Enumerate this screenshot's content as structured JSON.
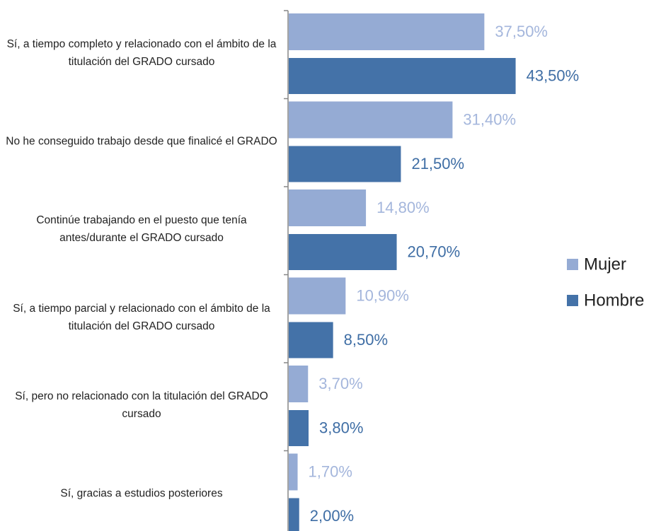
{
  "chart_data": {
    "type": "barh",
    "categories": [
      "Sí, a tiempo completo y relacionado con el ámbito de la titulación del GRADO cursado",
      "No he conseguido trabajo desde que finalicé el GRADO",
      "Continúe trabajando en el puesto que tenía antes/durante el GRADO cursado",
      "Sí, a tiempo parcial y relacionado con el ámbito de la titulación del GRADO cursado",
      "Sí, pero no relacionado con la titulación del GRADO cursado",
      "Sí, gracias a estudios posteriores"
    ],
    "series": [
      {
        "name": "Mujer",
        "color": "#95abd4",
        "values": [
          37.5,
          31.4,
          14.8,
          10.9,
          3.7,
          1.7
        ],
        "value_labels": [
          "37,50%",
          "31,40%",
          "14,80%",
          "10,90%",
          "3,70%",
          "1,70%"
        ]
      },
      {
        "name": "Hombre",
        "color": "#4472a8",
        "values": [
          43.5,
          21.5,
          20.7,
          8.5,
          3.8,
          2.0
        ],
        "value_labels": [
          "43,50%",
          "21,50%",
          "20,70%",
          "8,50%",
          "3,80%",
          "2,00%"
        ]
      }
    ],
    "legend": "right"
  }
}
